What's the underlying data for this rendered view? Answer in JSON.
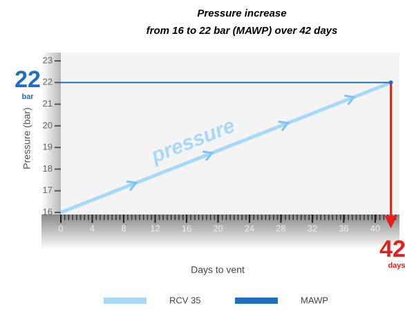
{
  "chart_data": {
    "type": "line",
    "title": "Pressure increase",
    "subtitle": "from 16 to 22 bar (MAWP) over 42 days",
    "xlabel": "Days to vent",
    "ylabel": "Pressure (bar)",
    "x": [
      0,
      42
    ],
    "series": [
      {
        "name": "RCV 35",
        "color": "#a8d8f8",
        "values": [
          16,
          22
        ]
      },
      {
        "name": "MAWP",
        "color": "#1e6fc0",
        "values": [
          22,
          22
        ]
      }
    ],
    "xlim": [
      0,
      43
    ],
    "xticks": [
      0,
      4,
      8,
      12,
      16,
      20,
      24,
      28,
      32,
      36,
      40
    ],
    "ylim": [
      16,
      23
    ],
    "yticks": [
      16,
      17,
      18,
      19,
      20,
      21,
      22,
      23
    ],
    "annotations": [
      "22",
      "bar",
      "42",
      "days",
      "pressure"
    ],
    "legend": "bottom"
  }
}
